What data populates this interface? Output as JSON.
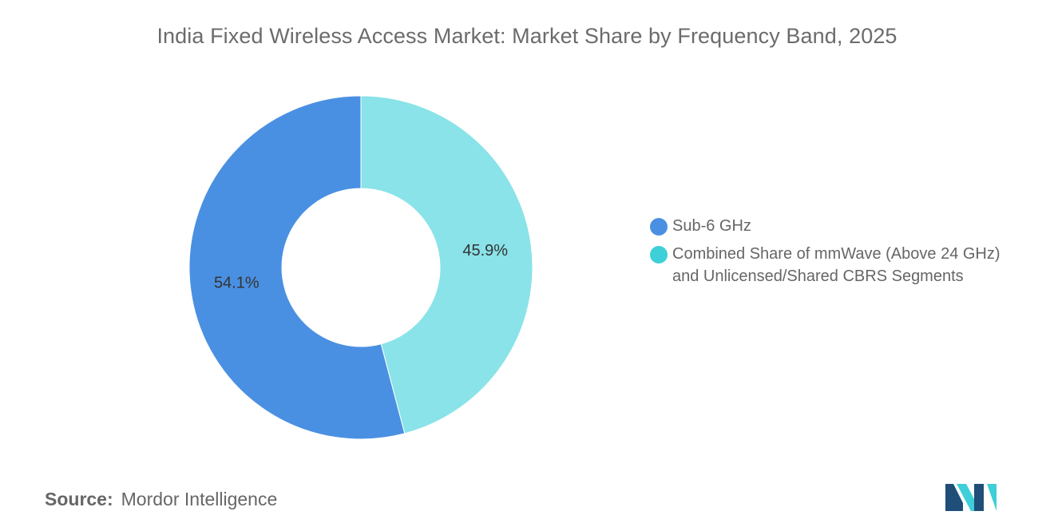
{
  "chart_data": {
    "type": "pie",
    "variant": "donut",
    "title": "India Fixed Wireless Access Market: Market Share by Frequency Band, 2025",
    "unit": "%",
    "slices": [
      {
        "label": "Sub-6 GHz",
        "value": 54.1,
        "display": "54.1%",
        "color": "#4a90e2"
      },
      {
        "label": "Combined Share of mmWave (Above 24 GHz) and Unlicensed/Shared CBRS Segments",
        "label_lines": [
          "Combined Share of mmWave (Above 24 GHz)",
          "and Unlicensed/Shared CBRS Segments"
        ],
        "value": 45.9,
        "display": "45.9%",
        "color": "#89e3e8",
        "legend_color": "#3ecfd8"
      }
    ],
    "legend_placement": "right"
  },
  "source": {
    "key": "Source:",
    "value": "Mordor Intelligence"
  },
  "logo": {
    "icon": "mordor-intelligence-logo",
    "colors": [
      "#1f4e79",
      "#3ecfd8"
    ]
  }
}
